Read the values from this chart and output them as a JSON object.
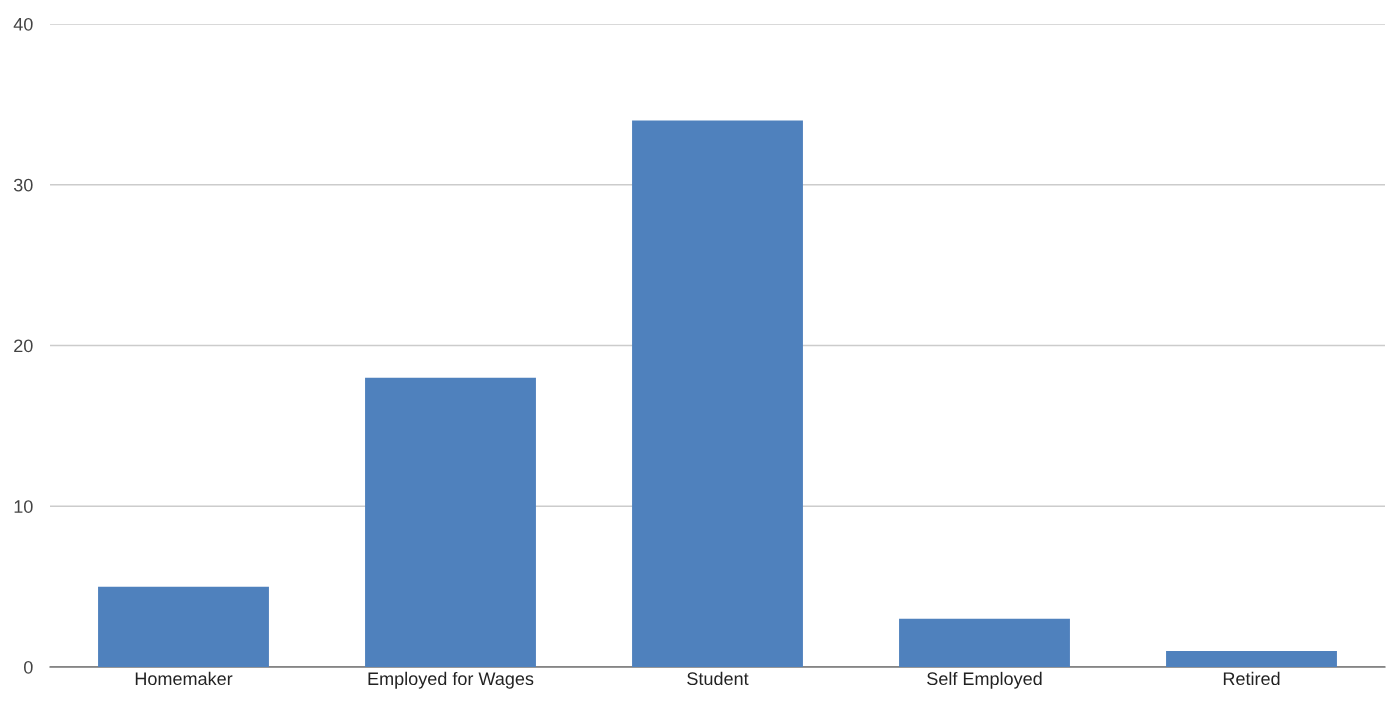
{
  "chart_data": {
    "type": "bar",
    "categories": [
      "Homemaker",
      "Employed for Wages",
      "Student",
      "Self Employed",
      "Retired"
    ],
    "values": [
      5,
      18,
      34,
      3,
      1
    ],
    "color": "#4f81bd",
    "ylim": [
      0,
      40
    ],
    "yticks": [
      0,
      10,
      20,
      30,
      40
    ],
    "grid": "y"
  }
}
